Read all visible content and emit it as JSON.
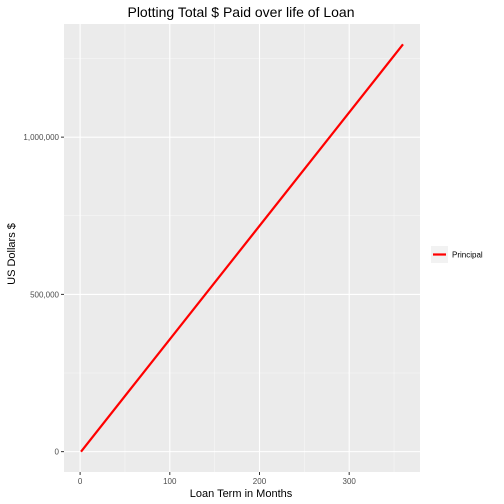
{
  "chart_data": {
    "type": "line",
    "title": "Plotting Total $ Paid over life of Loan",
    "xlabel": "Loan Term in Months",
    "ylabel": "US Dollars $",
    "xlim": [
      -17.95,
      378.95
    ],
    "ylim": [
      -64750,
      1359750
    ],
    "x_ticks": [
      0,
      100,
      200,
      300
    ],
    "x_tick_labels": [
      "0",
      "100",
      "200",
      "300"
    ],
    "y_ticks": [
      0,
      500000,
      1000000
    ],
    "y_tick_labels": [
      "0",
      "500,000",
      "1,000,000"
    ],
    "grid": true,
    "legend_position": "right",
    "series": [
      {
        "name": "Principal",
        "color": "#ff0000",
        "x": [
          1,
          360
        ],
        "y": [
          0,
          1295000
        ]
      }
    ]
  },
  "colors": {
    "panel_background": "#ebebeb",
    "grid_major": "#ffffff",
    "line": "#ff0000"
  }
}
